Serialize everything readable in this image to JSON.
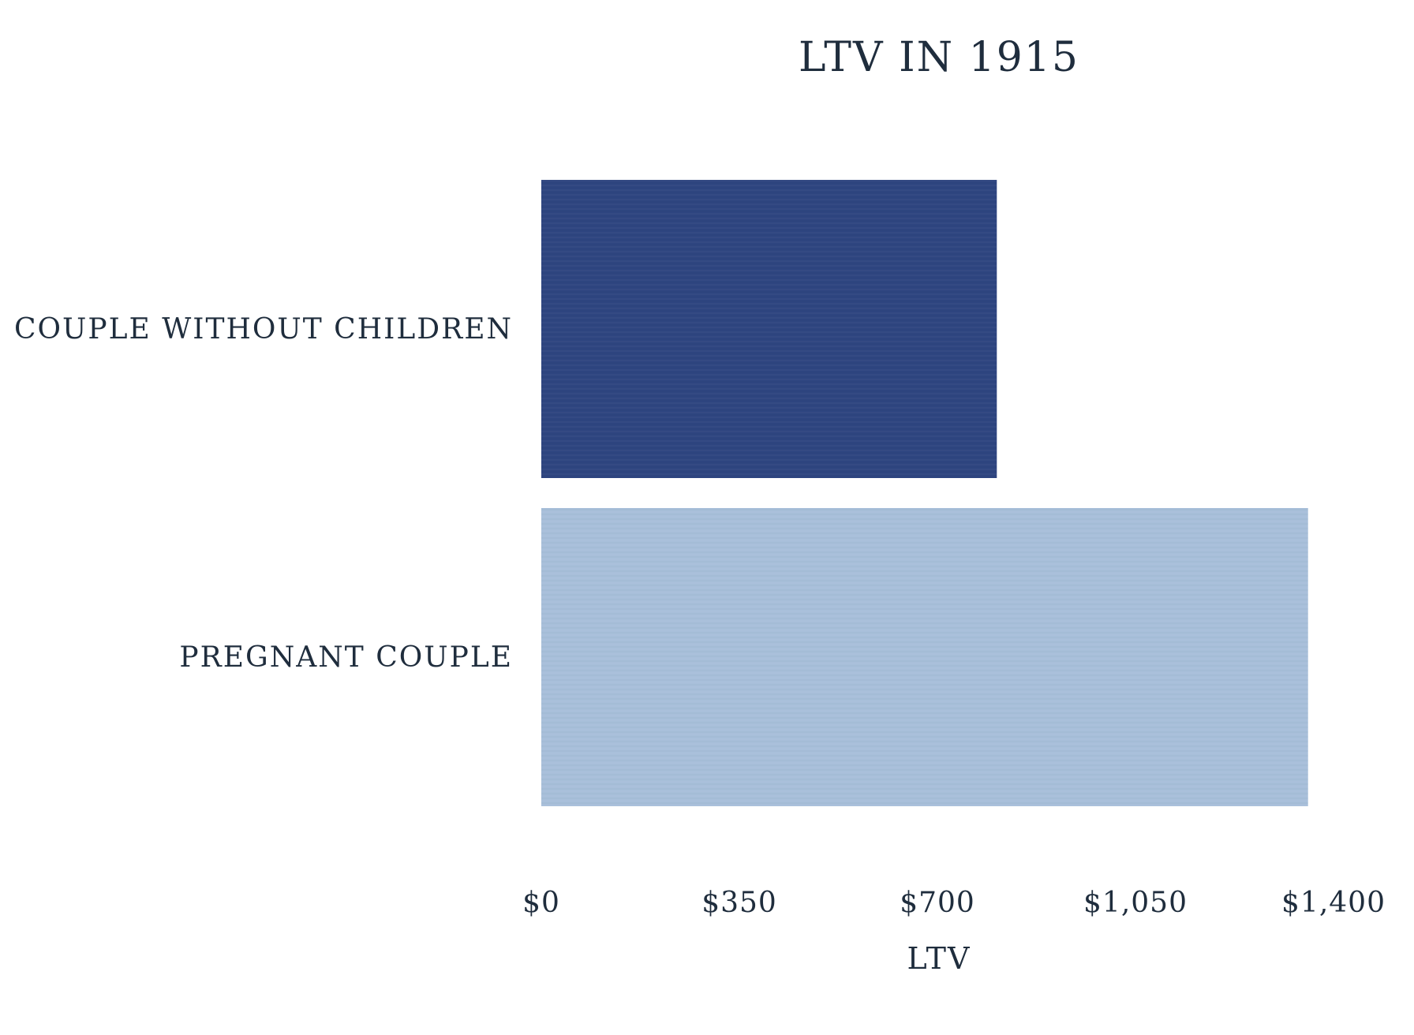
{
  "chart_data": {
    "type": "bar",
    "orientation": "horizontal",
    "title": "LTV IN 1915",
    "xlabel": "LTV",
    "ylabel": "",
    "categories": [
      "Couple without children",
      "Pregnant couple"
    ],
    "category_labels": [
      "COUPLE WITHOUT CHILDREN",
      "PREGNANT COUPLE"
    ],
    "values": [
      805,
      1355
    ],
    "bar_colors": [
      "#2e4580",
      "#a8bfda"
    ],
    "xlim": [
      0,
      1400
    ],
    "xticks": [
      0,
      350,
      700,
      1050,
      1400
    ],
    "xtick_labels": [
      "$0",
      "$350",
      "$700",
      "$1,050",
      "$1,400"
    ],
    "grid": false,
    "legend": "none"
  }
}
